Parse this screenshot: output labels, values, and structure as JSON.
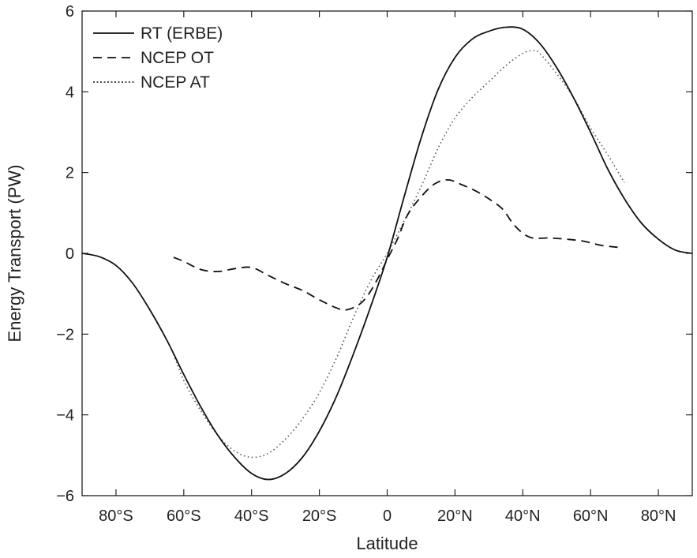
{
  "chart_data": {
    "type": "line",
    "title": "",
    "xlabel": "Latitude",
    "ylabel": "Energy Transport (PW)",
    "xlim": [
      -90,
      90
    ],
    "ylim": [
      -6,
      6
    ],
    "grid": false,
    "legend_position": "top-left",
    "x_ticks": [
      -80,
      -60,
      -40,
      -20,
      0,
      20,
      40,
      60,
      80
    ],
    "x_tick_labels": [
      "80°S",
      "60°S",
      "40°S",
      "20°S",
      "0",
      "20°N",
      "40°N",
      "60°N",
      "80°N"
    ],
    "y_ticks": [
      -6,
      -4,
      -2,
      0,
      2,
      4,
      6
    ],
    "y_tick_labels": [
      "−6",
      "−4",
      "−2",
      "0",
      "2",
      "4",
      "6"
    ],
    "series": [
      {
        "name": "RT (ERBE)",
        "style": "solid",
        "color": "#111111",
        "points": [
          [
            -90,
            0.0
          ],
          [
            -85,
            -0.08
          ],
          [
            -80,
            -0.3
          ],
          [
            -75,
            -0.75
          ],
          [
            -70,
            -1.4
          ],
          [
            -65,
            -2.15
          ],
          [
            -60,
            -3.0
          ],
          [
            -55,
            -3.8
          ],
          [
            -50,
            -4.5
          ],
          [
            -45,
            -5.05
          ],
          [
            -40,
            -5.45
          ],
          [
            -35,
            -5.6
          ],
          [
            -30,
            -5.45
          ],
          [
            -25,
            -5.05
          ],
          [
            -20,
            -4.4
          ],
          [
            -15,
            -3.55
          ],
          [
            -10,
            -2.5
          ],
          [
            -5,
            -1.35
          ],
          [
            0,
            -0.1
          ],
          [
            5,
            1.4
          ],
          [
            10,
            2.85
          ],
          [
            15,
            4.05
          ],
          [
            20,
            4.85
          ],
          [
            25,
            5.3
          ],
          [
            30,
            5.5
          ],
          [
            35,
            5.6
          ],
          [
            40,
            5.55
          ],
          [
            45,
            5.2
          ],
          [
            50,
            4.6
          ],
          [
            55,
            3.85
          ],
          [
            60,
            3.0
          ],
          [
            65,
            2.1
          ],
          [
            70,
            1.35
          ],
          [
            75,
            0.75
          ],
          [
            80,
            0.35
          ],
          [
            85,
            0.08
          ],
          [
            90,
            0.0
          ]
        ]
      },
      {
        "name": "NCEP OT",
        "style": "dashed",
        "color": "#111111",
        "points": [
          [
            -63,
            -0.1
          ],
          [
            -60,
            -0.2
          ],
          [
            -55,
            -0.4
          ],
          [
            -50,
            -0.45
          ],
          [
            -45,
            -0.38
          ],
          [
            -40,
            -0.35
          ],
          [
            -35,
            -0.55
          ],
          [
            -30,
            -0.75
          ],
          [
            -25,
            -0.92
          ],
          [
            -20,
            -1.15
          ],
          [
            -15,
            -1.35
          ],
          [
            -12,
            -1.4
          ],
          [
            -8,
            -1.25
          ],
          [
            -5,
            -0.95
          ],
          [
            -2,
            -0.5
          ],
          [
            0,
            -0.15
          ],
          [
            3,
            0.35
          ],
          [
            6,
            0.95
          ],
          [
            10,
            1.4
          ],
          [
            14,
            1.72
          ],
          [
            18,
            1.82
          ],
          [
            22,
            1.7
          ],
          [
            26,
            1.55
          ],
          [
            30,
            1.35
          ],
          [
            34,
            1.1
          ],
          [
            37,
            0.75
          ],
          [
            40,
            0.5
          ],
          [
            43,
            0.38
          ],
          [
            48,
            0.38
          ],
          [
            53,
            0.35
          ],
          [
            58,
            0.3
          ],
          [
            63,
            0.2
          ],
          [
            68,
            0.15
          ]
        ]
      },
      {
        "name": "NCEP AT",
        "style": "dotted",
        "color": "#111111",
        "points": [
          [
            -63,
            -2.5
          ],
          [
            -60,
            -3.15
          ],
          [
            -55,
            -3.9
          ],
          [
            -50,
            -4.5
          ],
          [
            -45,
            -4.9
          ],
          [
            -40,
            -5.05
          ],
          [
            -35,
            -4.95
          ],
          [
            -30,
            -4.6
          ],
          [
            -25,
            -4.1
          ],
          [
            -20,
            -3.45
          ],
          [
            -15,
            -2.6
          ],
          [
            -10,
            -1.6
          ],
          [
            -5,
            -0.7
          ],
          [
            0,
            0.0
          ],
          [
            5,
            0.8
          ],
          [
            10,
            1.65
          ],
          [
            15,
            2.6
          ],
          [
            20,
            3.35
          ],
          [
            25,
            3.85
          ],
          [
            30,
            4.25
          ],
          [
            35,
            4.65
          ],
          [
            40,
            4.95
          ],
          [
            43,
            5.02
          ],
          [
            45,
            4.95
          ],
          [
            50,
            4.45
          ],
          [
            55,
            3.85
          ],
          [
            60,
            3.1
          ],
          [
            65,
            2.45
          ],
          [
            70,
            1.75
          ]
        ]
      }
    ]
  }
}
